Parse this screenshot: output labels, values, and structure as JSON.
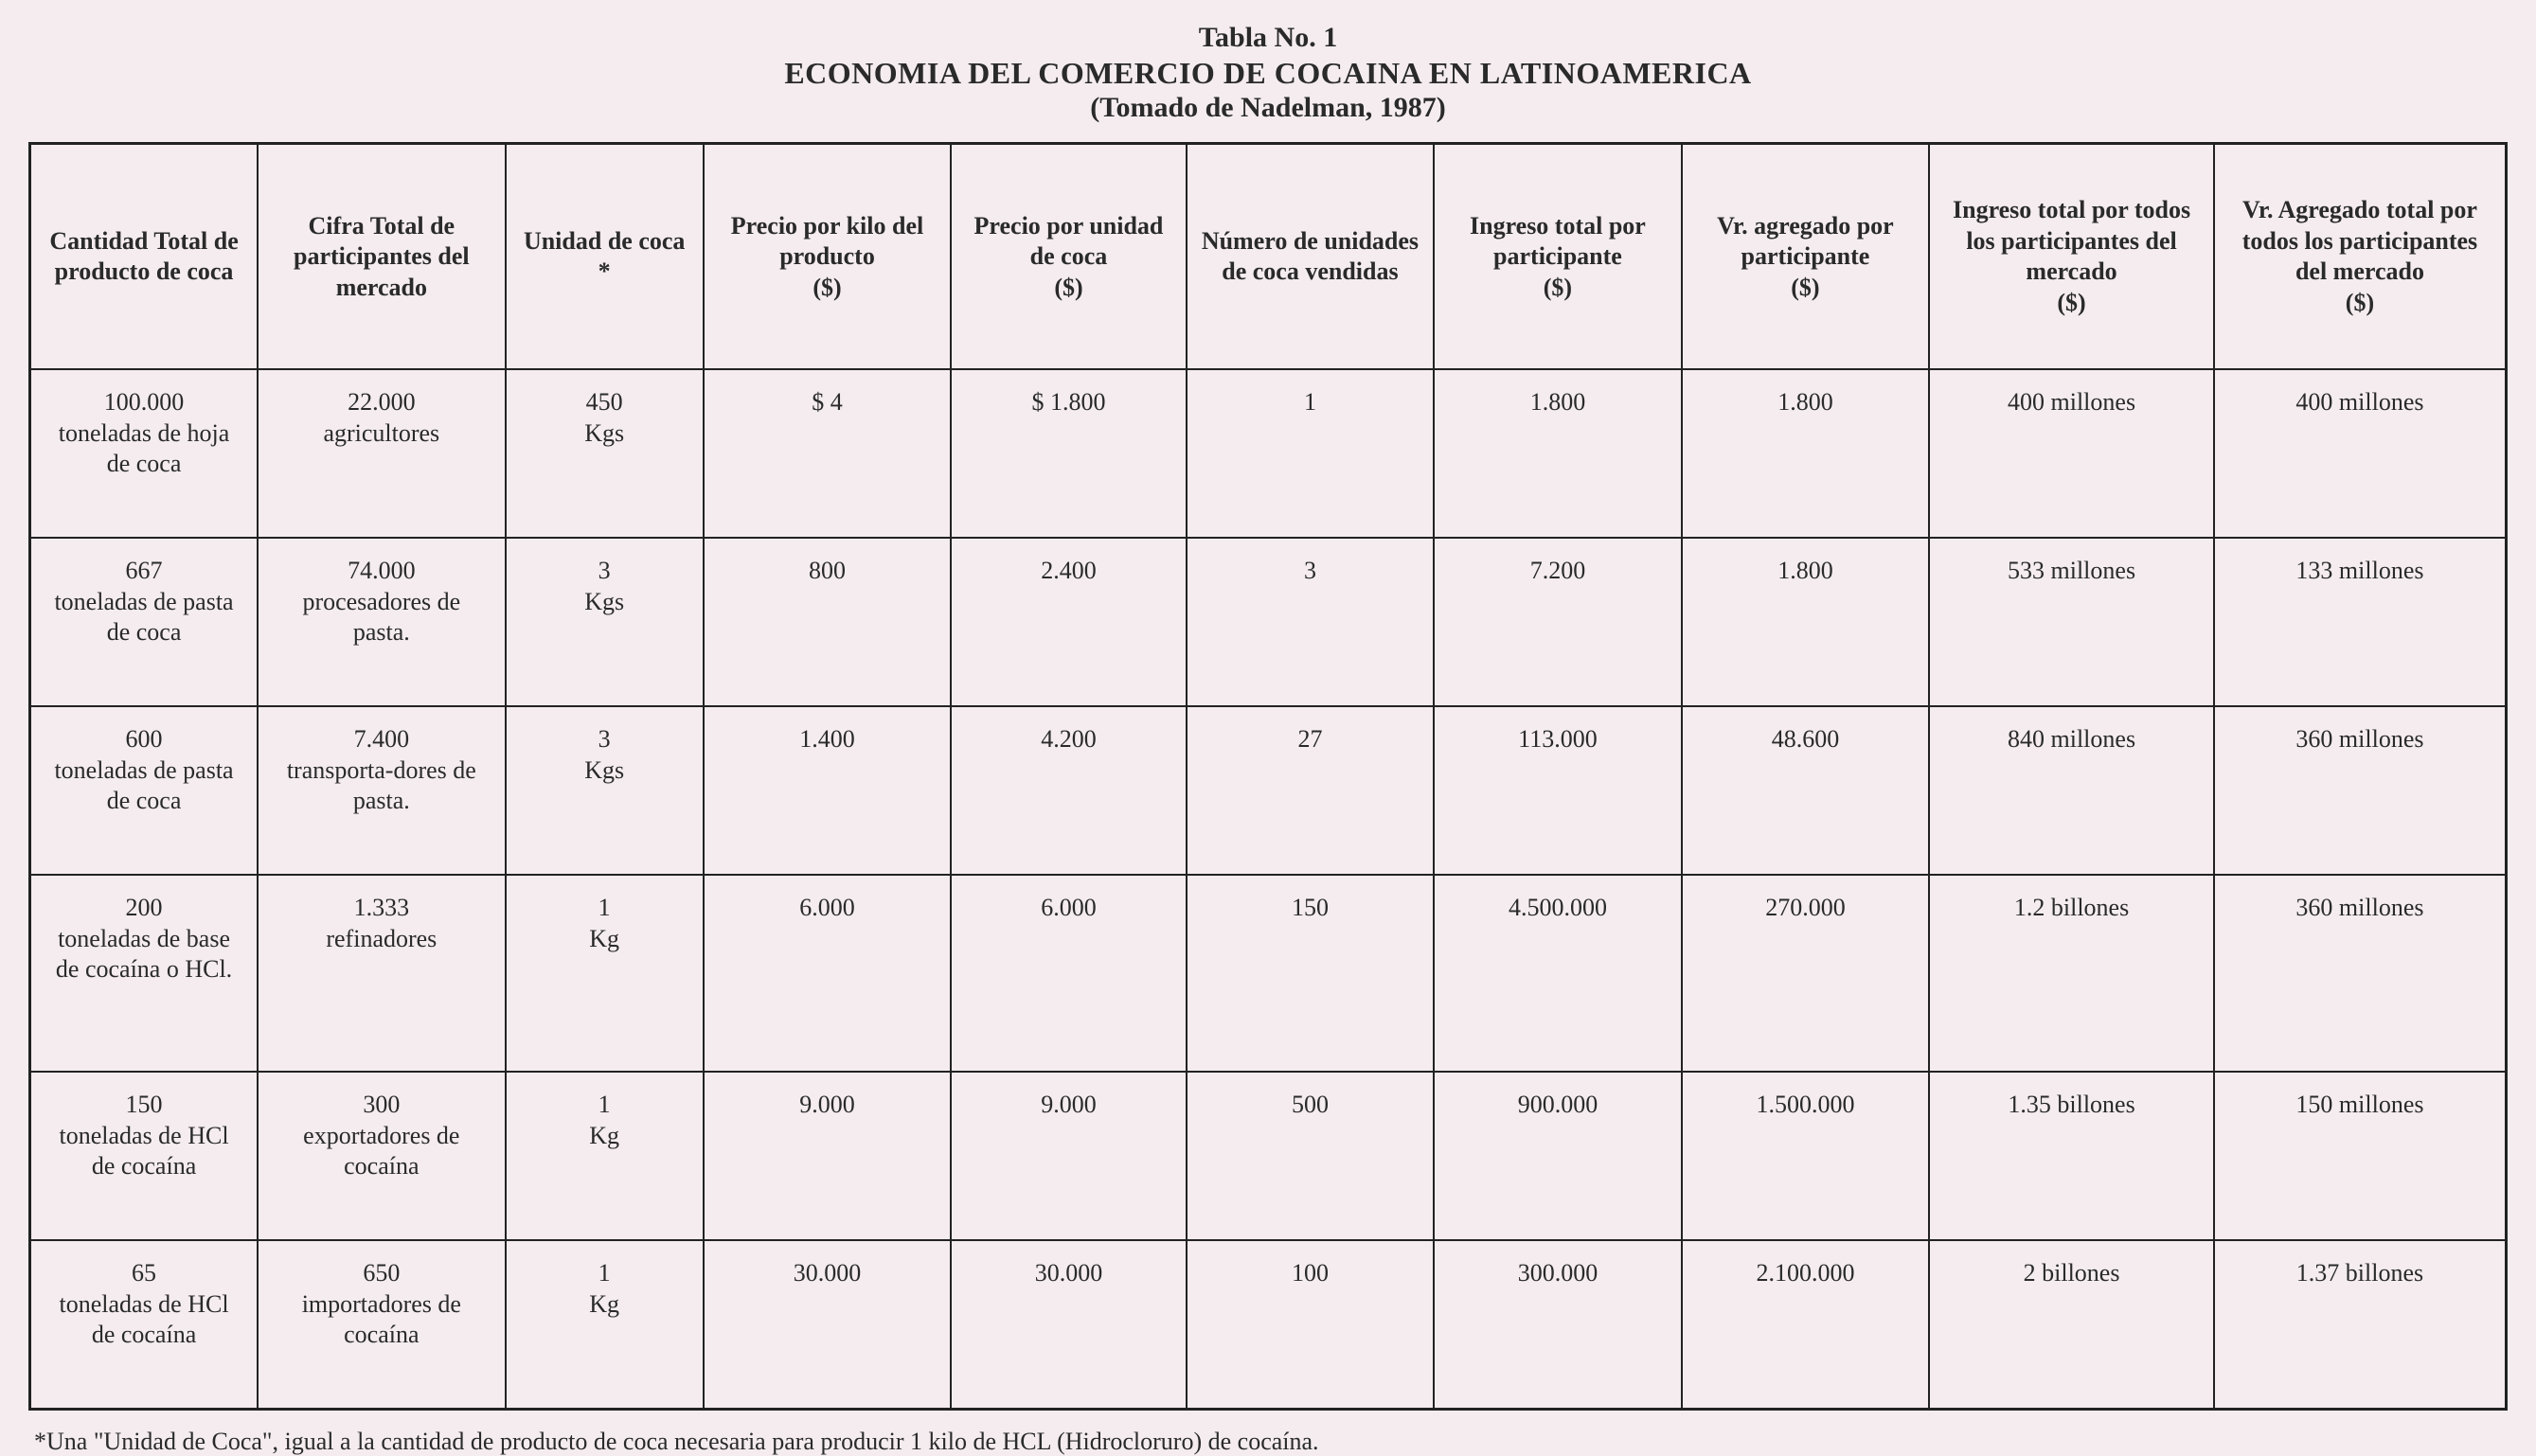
{
  "title": {
    "line1": "Tabla No. 1",
    "line2": "ECONOMIA DEL COMERCIO DE COCAINA EN LATINOAMERICA",
    "line3": "(Tomado de Nadelman, 1987)"
  },
  "table": {
    "type": "table",
    "background_color": "#f4ecef",
    "border_color": "#222222",
    "text_color": "#2a2a2a",
    "header_fontsize": 26,
    "cell_fontsize": 26,
    "font_family": "Times New Roman",
    "column_widths_pct": [
      9.2,
      10,
      8,
      10,
      9.5,
      10,
      10,
      10,
      11.5,
      11.8
    ],
    "columns": [
      "Cantidad Total de producto de coca",
      "Cifra Total de participantes del mercado",
      "Unidad de coca\n*",
      "Precio por kilo del producto\n($)",
      "Precio por unidad de coca\n($)",
      "Número de unidades de coca vendidas",
      "Ingreso total por participante\n($)",
      "Vr. agregado por participante\n($)",
      "Ingreso total por todos los participantes del mercado\n($)",
      "Vr. Agregado total por todos los participantes del mercado\n($)"
    ],
    "rows": [
      [
        "100.000\ntoneladas de hoja de coca",
        "22.000\nagricultores",
        "450\nKgs",
        "$        4",
        "$  1.800",
        "1",
        "1.800",
        "1.800",
        "400 millones",
        "400 millones"
      ],
      [
        "667\ntoneladas de pasta de coca",
        "74.000\nprocesadores de pasta.",
        "3\nKgs",
        "800",
        "2.400",
        "3",
        "7.200",
        "1.800",
        "533 millones",
        "133 millones"
      ],
      [
        "600\ntoneladas de pasta de coca",
        "7.400\ntransporta-dores de pasta.",
        "3\nKgs",
        "1.400",
        "4.200",
        "27",
        "113.000",
        "48.600",
        "840 millones",
        "360 millones"
      ],
      [
        "200\ntoneladas de base de cocaína o HCl.",
        "1.333\nrefinadores",
        "1\nKg",
        "6.000",
        "6.000",
        "150",
        "4.500.000",
        "270.000",
        "1.2 billones",
        "360 millones"
      ],
      [
        "150\ntoneladas de HCl de cocaína",
        "300\nexportadores de cocaína",
        "1\nKg",
        "9.000",
        "9.000",
        "500",
        "900.000",
        "1.500.000",
        "1.35 billones",
        "150 millones"
      ],
      [
        "65\ntoneladas de HCl de cocaína",
        "650\nimportadores de cocaína",
        "1\nKg",
        "30.000",
        "30.000",
        "100",
        "300.000",
        "2.100.000",
        "2 billones",
        "1.37 billones"
      ]
    ],
    "tall_row_indices": [
      3
    ]
  },
  "footnote": "*Una \"Unidad de Coca\", igual a la cantidad de producto de coca necesaria para producir 1 kilo de HCL (Hidrocloruro) de cocaína."
}
